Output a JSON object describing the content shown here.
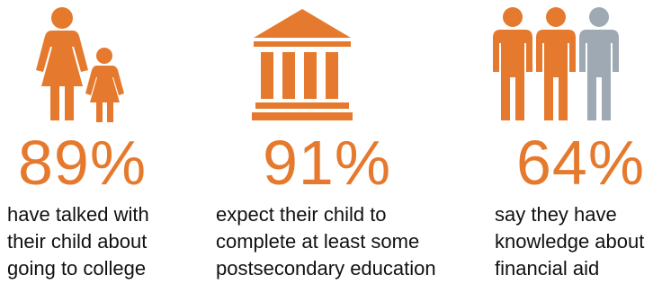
{
  "colors": {
    "accent": "#E57A2E",
    "muted_figure": "#9FA9B4",
    "text": "#111111"
  },
  "stats": [
    {
      "icon": "parent-child-icon",
      "percent": "89%",
      "lines": [
        "have talked with",
        "their child about",
        "going to college"
      ]
    },
    {
      "icon": "college-building-icon",
      "percent": "91%",
      "lines": [
        "expect their child to",
        "complete at least some",
        "postsecondary education"
      ]
    },
    {
      "icon": "three-people-icon",
      "percent": "64%",
      "lines": [
        "say they have",
        "knowledge about",
        "financial aid"
      ]
    }
  ]
}
